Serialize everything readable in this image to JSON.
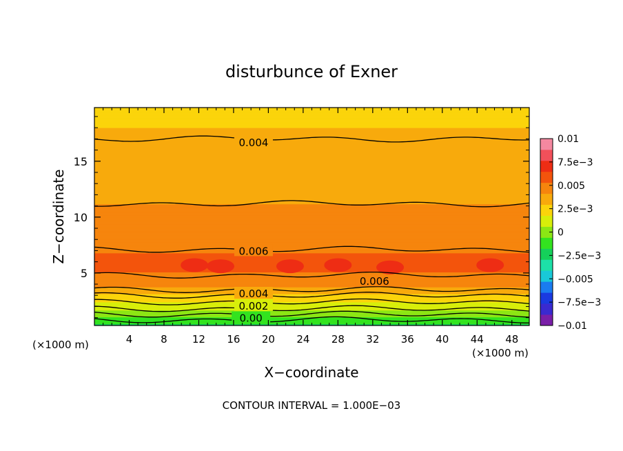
{
  "chart_data": {
    "type": "heatmap",
    "title": "disturbunce of Exner",
    "xlabel": "X−coordinate",
    "ylabel": "Z−coordinate",
    "x_unit_left": "(×1000 m)",
    "x_unit_right": "(×1000 m)",
    "footer": "CONTOUR INTERVAL = 1.000E−03",
    "xlim": [
      0,
      50
    ],
    "ylim": [
      0.3,
      19.8
    ],
    "x_ticks": [
      {
        "v": 4,
        "label": "4"
      },
      {
        "v": 8,
        "label": "8"
      },
      {
        "v": 12,
        "label": "12"
      },
      {
        "v": 16,
        "label": "16"
      },
      {
        "v": 20,
        "label": "20"
      },
      {
        "v": 24,
        "label": "24"
      },
      {
        "v": 28,
        "label": "28"
      },
      {
        "v": 32,
        "label": "32"
      },
      {
        "v": 36,
        "label": "36"
      },
      {
        "v": 40,
        "label": "40"
      },
      {
        "v": 44,
        "label": "44"
      },
      {
        "v": 48,
        "label": "48"
      }
    ],
    "y_ticks": [
      {
        "v": 5,
        "label": "5"
      },
      {
        "v": 10,
        "label": "10"
      },
      {
        "v": 15,
        "label": "15"
      }
    ],
    "profile": [
      [
        0.3,
        -0.0015
      ],
      [
        0.8,
        -0.0005
      ],
      [
        1.3,
        0.0005
      ],
      [
        1.8,
        0.0015
      ],
      [
        2.4,
        0.0025
      ],
      [
        3.0,
        0.0035
      ],
      [
        3.5,
        0.0045
      ],
      [
        4.0,
        0.0055
      ],
      [
        4.8,
        0.006
      ],
      [
        5.5,
        0.0066
      ],
      [
        6.2,
        0.0066
      ],
      [
        7.1,
        0.006
      ],
      [
        8.5,
        0.0055
      ],
      [
        10.0,
        0.0052
      ],
      [
        11.2,
        0.005
      ],
      [
        12.5,
        0.0047
      ],
      [
        14.0,
        0.0044
      ],
      [
        15.5,
        0.0042
      ],
      [
        17.0,
        0.004
      ],
      [
        18.5,
        0.0036
      ],
      [
        19.8,
        0.0028
      ]
    ],
    "contours": [
      {
        "value": "0.004",
        "z": 17.0
      },
      {
        "value": "0.005",
        "z": 11.2
      },
      {
        "value": "0.006",
        "z": 7.1
      },
      {
        "value": "0.006",
        "z": 4.8
      },
      {
        "value": "0.004",
        "z": 3.5
      },
      {
        "value": "0.003",
        "z": 3.0
      },
      {
        "value": "0.002",
        "z": 2.4
      },
      {
        "value": "0.001",
        "z": 1.8
      },
      {
        "value": "0.00",
        "z": 1.3
      },
      {
        "value": "-0.001",
        "z": 0.8
      }
    ],
    "contour_labels": [
      {
        "text": "0.004",
        "x": 18.3,
        "z": 16.7
      },
      {
        "text": "0.006",
        "x": 18.3,
        "z": 7.0
      },
      {
        "text": "0.006",
        "x": 32.2,
        "z": 4.3
      },
      {
        "text": "0.004",
        "x": 18.3,
        "z": 3.2
      },
      {
        "text": "0.002",
        "x": 18.3,
        "z": 2.1
      },
      {
        "text": "0.00",
        "x": 18.0,
        "z": 1.0
      }
    ],
    "maxima": [
      {
        "x": 11.5,
        "z": 5.7
      },
      {
        "x": 14.5,
        "z": 5.6
      },
      {
        "x": 22.5,
        "z": 5.6
      },
      {
        "x": 28.0,
        "z": 5.7
      },
      {
        "x": 34.0,
        "z": 5.5
      },
      {
        "x": 45.5,
        "z": 5.7
      }
    ],
    "colorbar": {
      "levels": [
        -0.01,
        -0.0075,
        -0.005,
        -0.0025,
        0,
        0.0025,
        0.005,
        0.0075,
        0.01
      ],
      "labels": [
        "0.01",
        "7.5e−3",
        "0.005",
        "2.5e−3",
        "0",
        "−2.5e−3",
        "−0.005",
        "−7.5e−3",
        "−0.01"
      ],
      "colors": [
        "#7a1fa8",
        "#3a2ad0",
        "#1a3ae0",
        "#1a7cf0",
        "#19c8d8",
        "#1de0a8",
        "#15d05a",
        "#33e31f",
        "#8ce614",
        "#d8ee0a",
        "#fbd40b",
        "#f8aa0c",
        "#f6850d",
        "#f3540c",
        "#ee2d14",
        "#f2505a",
        "#f488a0"
      ]
    }
  }
}
